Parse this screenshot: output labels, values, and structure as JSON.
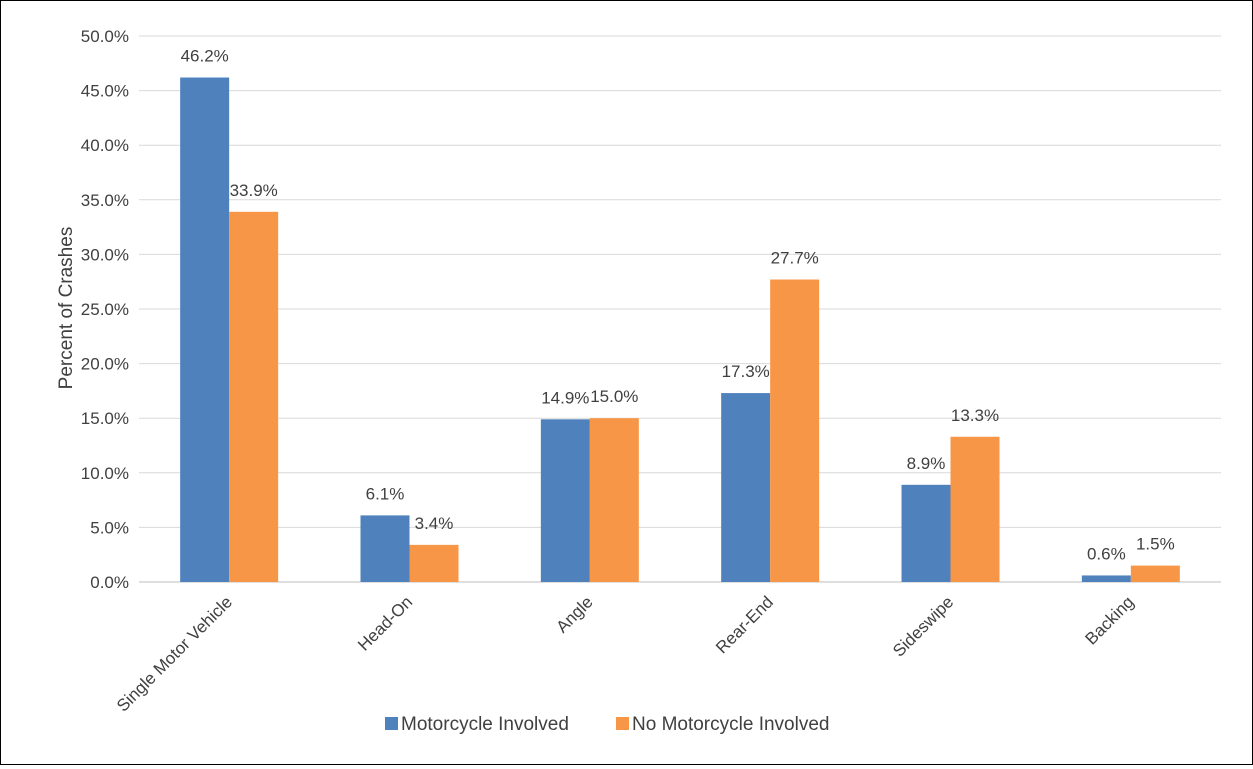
{
  "chart_data": {
    "type": "bar",
    "title": "",
    "xlabel": "",
    "ylabel": "Percent of Crashes",
    "ylim": [
      0,
      50
    ],
    "ytick_step": 5,
    "ytick_format": "percent_1dp",
    "grid": true,
    "legend_position": "bottom",
    "categories": [
      "Single Motor Vehicle",
      "Head-On",
      "Angle",
      "Rear-End",
      "Sideswipe",
      "Backing"
    ],
    "series": [
      {
        "name": "Motorcycle Involved",
        "color": "#4F81BD",
        "values": [
          46.2,
          6.1,
          14.9,
          17.3,
          8.9,
          0.6
        ],
        "labels": [
          "46.2%",
          "6.1%",
          "14.9%",
          "17.3%",
          "8.9%",
          "0.6%"
        ]
      },
      {
        "name": "No Motorcycle Involved",
        "color": "#F79646",
        "values": [
          33.9,
          3.4,
          15.0,
          27.7,
          13.3,
          1.5
        ],
        "labels": [
          "33.9%",
          "3.4%",
          "15.0%",
          "27.7%",
          "13.3%",
          "1.5%"
        ]
      }
    ]
  }
}
